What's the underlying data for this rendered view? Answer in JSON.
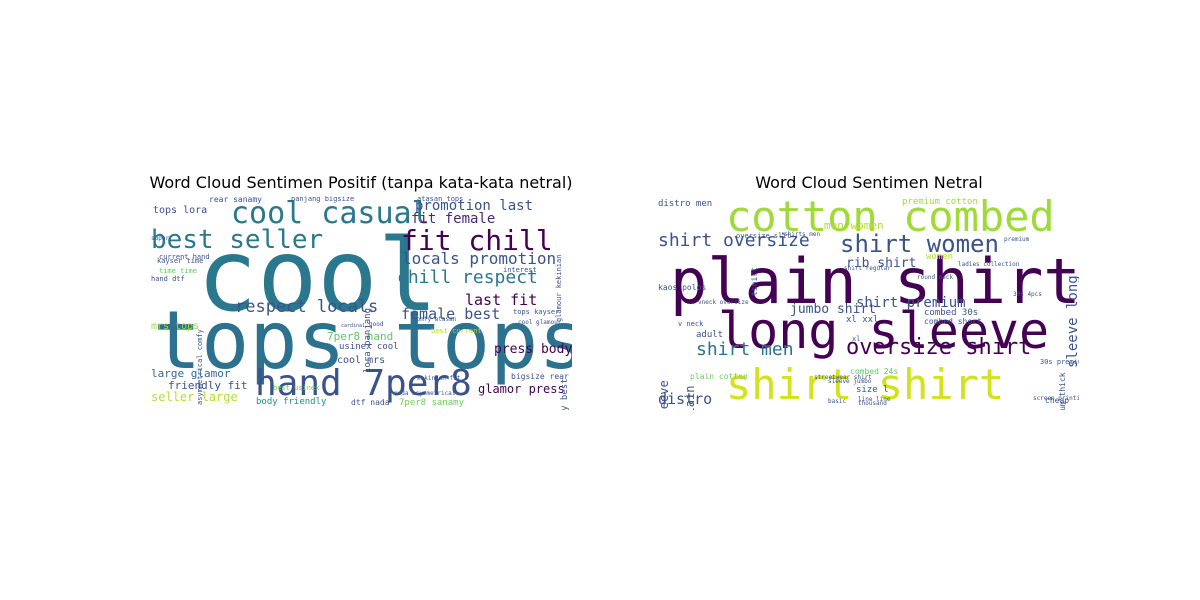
{
  "figure": {
    "titles": {
      "left": "Word Cloud Sentimen Positif (tanpa kata-kata netral)",
      "right": "Word Cloud Sentimen Netral"
    }
  },
  "clouds": {
    "left": {
      "words": [
        {
          "text": "cool",
          "size": 100,
          "color": "#2a788e",
          "rot": 0
        },
        {
          "text": "tops tops",
          "size": 80,
          "color": "#2c728e",
          "rot": 0
        },
        {
          "text": "hand 7per8",
          "size": 36,
          "color": "#3b528b",
          "rot": 0
        },
        {
          "text": "cool casual",
          "size": 30,
          "color": "#2a788e",
          "rot": 0
        },
        {
          "text": "best seller",
          "size": 26,
          "color": "#2a788e",
          "rot": 0
        },
        {
          "text": "fit chill",
          "size": 28,
          "color": "#440154",
          "rot": 0
        },
        {
          "text": "chill respect",
          "size": 18,
          "color": "#2a788e",
          "rot": 0
        },
        {
          "text": "locals promotion",
          "size": 16,
          "color": "#3b528b",
          "rot": 0
        },
        {
          "text": "promotion last",
          "size": 14,
          "color": "#3b528b",
          "rot": 0
        },
        {
          "text": "fit female",
          "size": 14,
          "color": "#482878",
          "rot": 0
        },
        {
          "text": "respect locals",
          "size": 17,
          "color": "#3b528b",
          "rot": 0
        },
        {
          "text": "last fit",
          "size": 15,
          "color": "#440154",
          "rot": 0
        },
        {
          "text": "female best",
          "size": 15,
          "color": "#3b528b",
          "rot": 0
        },
        {
          "text": "press body",
          "size": 13,
          "color": "#440154",
          "rot": 0
        },
        {
          "text": "glamor press",
          "size": 12,
          "color": "#440154",
          "rot": 0
        },
        {
          "text": "seller large",
          "size": 12,
          "color": "#b5de2b",
          "rot": 0
        },
        {
          "text": "large glamor",
          "size": 11,
          "color": "#31688e",
          "rot": 0
        },
        {
          "text": "friendly fit",
          "size": 11,
          "color": "#3b528b",
          "rot": 0
        },
        {
          "text": "7per8 hand",
          "size": 11,
          "color": "#5ec962",
          "rot": 0
        },
        {
          "text": "cool mrs",
          "size": 10,
          "color": "#3b528b",
          "rot": 0
        },
        {
          "text": "usinex cool",
          "size": 9,
          "color": "#3b528b",
          "rot": 0
        },
        {
          "text": "mrs tops",
          "size": 10,
          "color": "#a0da39",
          "rot": 0
        },
        {
          "text": "tops lora",
          "size": 10,
          "color": "#3b528b",
          "rot": 0
        },
        {
          "text": "body friendly",
          "size": 9,
          "color": "#21918c",
          "rot": 0
        },
        {
          "text": "7per8 sanamy",
          "size": 9,
          "color": "#6ece58",
          "rot": 0
        },
        {
          "text": "bigsize rear",
          "size": 8,
          "color": "#3b528b",
          "rot": 0
        },
        {
          "text": "dtf nada",
          "size": 8,
          "color": "#3b528b",
          "rot": 0
        },
        {
          "text": "rear sanamy",
          "size": 8,
          "color": "#3b528b",
          "rot": 0
        },
        {
          "text": "atasan tops",
          "size": 7,
          "color": "#3b528b",
          "rot": 0
        },
        {
          "text": "panjang bigsize",
          "size": 7,
          "color": "#3b528b",
          "rot": 0
        },
        {
          "text": "current hand",
          "size": 7,
          "color": "#3b528b",
          "rot": 0
        },
        {
          "text": "kayser time",
          "size": 7,
          "color": "#3b528b",
          "rot": 0
        },
        {
          "text": "time time",
          "size": 7,
          "color": "#5ec962",
          "rot": 0
        },
        {
          "text": "hand dtf",
          "size": 7,
          "color": "#3b528b",
          "rot": 0
        },
        {
          "text": "best current",
          "size": 7,
          "color": "#b5de2b",
          "rot": 0
        },
        {
          "text": "comfy atasan",
          "size": 6,
          "color": "#31688e",
          "rot": 0
        },
        {
          "text": "interest",
          "size": 7,
          "color": "#3b528b",
          "rot": 0
        },
        {
          "text": "tops kayser",
          "size": 7,
          "color": "#3b528b",
          "rot": 0
        },
        {
          "text": "cool glamour",
          "size": 6,
          "color": "#3b528b",
          "rot": 0
        },
        {
          "text": "nada asymmetrical",
          "size": 6,
          "color": "#3b528b",
          "rot": 0
        },
        {
          "text": "kekinian fit",
          "size": 6,
          "color": "#3b528b",
          "rot": 0
        },
        {
          "text": "best usinex",
          "size": 7,
          "color": "#6ece58",
          "rot": 0
        },
        {
          "text": "super",
          "size": 6,
          "color": "#3b528b",
          "rot": 0
        },
        {
          "text": "good",
          "size": 6,
          "color": "#3b528b",
          "rot": 0
        },
        {
          "text": "cardinal",
          "size": 5,
          "color": "#3b528b",
          "rot": 0
        },
        {
          "text": "lora panjang",
          "size": 9,
          "color": "#3b528b",
          "rot": 90
        },
        {
          "text": "sanamy best",
          "size": 9,
          "color": "#3b528b",
          "rot": 90
        },
        {
          "text": "glamour kekinian",
          "size": 7,
          "color": "#3b528b",
          "rot": 90
        },
        {
          "text": "asymmetrical comfy",
          "size": 7,
          "color": "#3b528b",
          "rot": 90
        }
      ]
    },
    "right": {
      "words": [
        {
          "text": "plain shirt",
          "size": 62,
          "color": "#440154",
          "rot": 0
        },
        {
          "text": "long sleeve",
          "size": 50,
          "color": "#440154",
          "rot": 0
        },
        {
          "text": "cotton combed",
          "size": 42,
          "color": "#a0da39",
          "rot": 0
        },
        {
          "text": "shirt shirt",
          "size": 42,
          "color": "#d2e21b",
          "rot": 0
        },
        {
          "text": "shirt women",
          "size": 24,
          "color": "#3b528b",
          "rot": 0
        },
        {
          "text": "oversize shirt",
          "size": 22,
          "color": "#440154",
          "rot": 0
        },
        {
          "text": "shirt oversize",
          "size": 18,
          "color": "#3b528b",
          "rot": 0
        },
        {
          "text": "shirt men",
          "size": 18,
          "color": "#2c728e",
          "rot": 0
        },
        {
          "text": "shirt premium",
          "size": 14,
          "color": "#3b528b",
          "rot": 0
        },
        {
          "text": "jumbo shirt",
          "size": 13,
          "color": "#3b528b",
          "rot": 0
        },
        {
          "text": "rib shirt",
          "size": 13,
          "color": "#3b528b",
          "rot": 0
        },
        {
          "text": "distro",
          "size": 15,
          "color": "#3b528b",
          "rot": 0
        },
        {
          "text": "men women",
          "size": 11,
          "color": "#b5de2b",
          "rot": 0
        },
        {
          "text": "premium cotton",
          "size": 9,
          "color": "#a0da39",
          "rot": 0
        },
        {
          "text": "combed 30s",
          "size": 9,
          "color": "#3b528b",
          "rot": 0
        },
        {
          "text": "combed short",
          "size": 8,
          "color": "#3b528b",
          "rot": 0
        },
        {
          "text": "distro men",
          "size": 9,
          "color": "#3b528b",
          "rot": 0
        },
        {
          "text": "combed 24s",
          "size": 8,
          "color": "#5ec962",
          "rot": 0
        },
        {
          "text": "women",
          "size": 9,
          "color": "#b5de2b",
          "rot": 0
        },
        {
          "text": "kaos polos",
          "size": 8,
          "color": "#3b528b",
          "rot": 0
        },
        {
          "text": "adult",
          "size": 9,
          "color": "#3b528b",
          "rot": 0
        },
        {
          "text": "xl xxl",
          "size": 9,
          "color": "#3b528b",
          "rot": 0
        },
        {
          "text": "size l",
          "size": 9,
          "color": "#3b528b",
          "rot": 0
        },
        {
          "text": "cheap",
          "size": 8,
          "color": "#3b528b",
          "rot": 0
        },
        {
          "text": "30s premium",
          "size": 7,
          "color": "#3b528b",
          "rot": 0
        },
        {
          "text": "plain cotton",
          "size": 8,
          "color": "#6ece58",
          "rot": 0
        },
        {
          "text": "v neck",
          "size": 7,
          "color": "#3b528b",
          "rot": 0
        },
        {
          "text": "line line",
          "size": 6,
          "color": "#3b528b",
          "rot": 0
        },
        {
          "text": "screen printing",
          "size": 6,
          "color": "#3b528b",
          "rot": 0
        },
        {
          "text": "premium",
          "size": 6,
          "color": "#3b528b",
          "rot": 0
        },
        {
          "text": "ladies collection",
          "size": 6,
          "color": "#3b528b",
          "rot": 0
        },
        {
          "text": "vneck oversize",
          "size": 6,
          "color": "#3b528b",
          "rot": 0
        },
        {
          "text": "shirt regular",
          "size": 6,
          "color": "#3b528b",
          "rot": 0
        },
        {
          "text": "streetwear shirt",
          "size": 6,
          "color": "#3b528b",
          "rot": 0
        },
        {
          "text": "sleeve jumbo",
          "size": 6,
          "color": "#3b528b",
          "rot": 0
        },
        {
          "text": "thousand",
          "size": 6,
          "color": "#3b528b",
          "rot": 0
        },
        {
          "text": "basic",
          "size": 6,
          "color": "#3b528b",
          "rot": 0
        },
        {
          "text": "oversize slit",
          "size": 7,
          "color": "#3b528b",
          "rot": 0
        },
        {
          "text": "shirts men",
          "size": 6,
          "color": "#3b528b",
          "rot": 0
        },
        {
          "text": "round neck",
          "size": 6,
          "color": "#3b528b",
          "rot": 0
        },
        {
          "text": "30s 4pcs",
          "size": 6,
          "color": "#3b528b",
          "rot": 0
        },
        {
          "text": "xl",
          "size": 7,
          "color": "#3b528b",
          "rot": 0
        },
        {
          "text": "short sleeve",
          "size": 12,
          "color": "#3b528b",
          "rot": 90
        },
        {
          "text": "women plain",
          "size": 12,
          "color": "#3b528b",
          "rot": 90
        },
        {
          "text": "sleeve long",
          "size": 14,
          "color": "#3b528b",
          "rot": 90
        },
        {
          "text": "premium thick",
          "size": 8,
          "color": "#3b528b",
          "rot": 90
        },
        {
          "text": "tshirt",
          "size": 8,
          "color": "#3b528b",
          "rot": 90
        }
      ]
    }
  }
}
